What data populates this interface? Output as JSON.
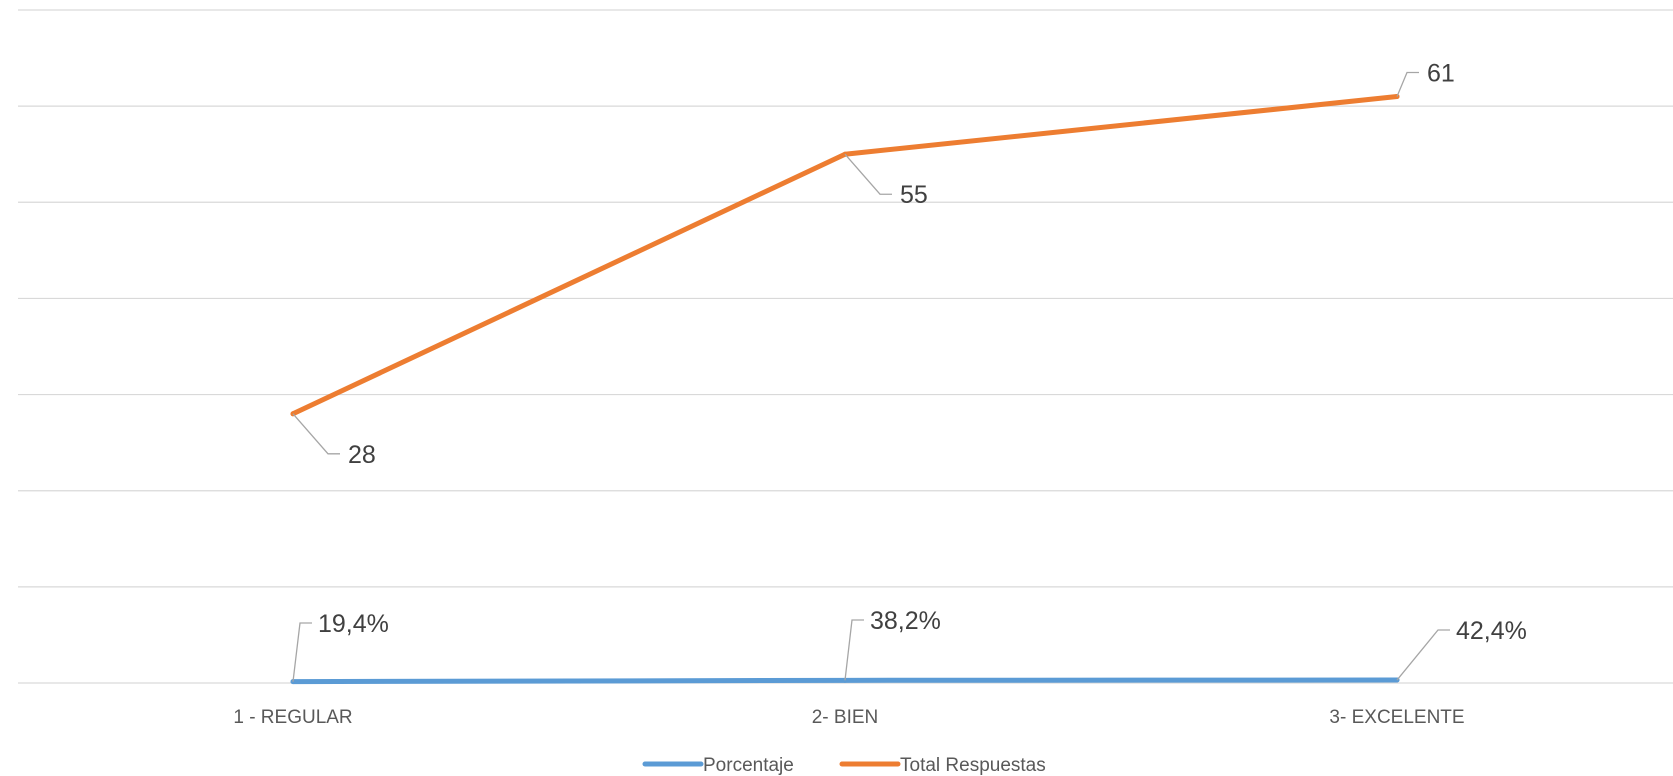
{
  "chart_data": {
    "type": "line",
    "categories": [
      "1 - REGULAR",
      "2- BIEN",
      "3- EXCELENTE"
    ],
    "series": [
      {
        "name": "Porcentaje",
        "values": [
          0.194,
          0.382,
          0.424
        ],
        "labels": [
          "19,4%",
          "38,2%",
          "42,4%"
        ],
        "color": "#5b9bd5"
      },
      {
        "name": "Total Respuestas",
        "values": [
          28,
          55,
          61
        ],
        "labels": [
          "28",
          "55",
          "61"
        ],
        "color": "#ed7d31"
      }
    ],
    "ylim": [
      0,
      70
    ],
    "grid": true,
    "legend": "bottom"
  }
}
